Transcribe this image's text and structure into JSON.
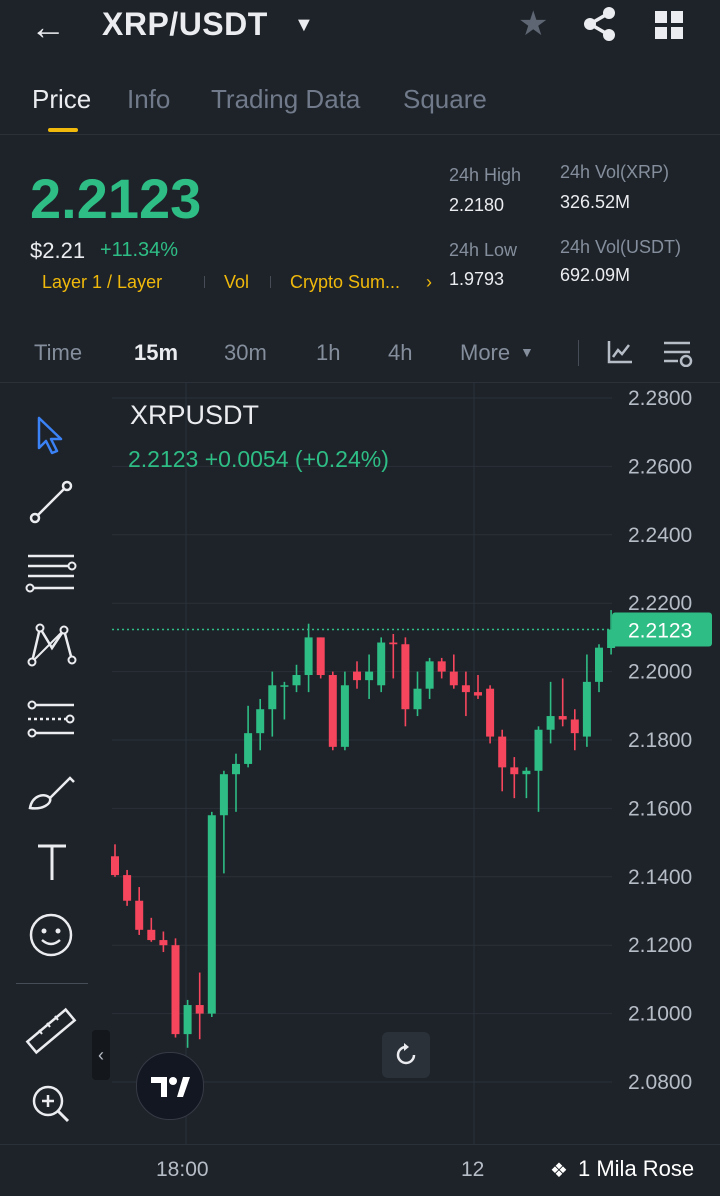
{
  "header": {
    "pair": "XRP/USDT",
    "icons": [
      "back-arrow-icon",
      "caret-down-icon",
      "star-icon",
      "share-icon",
      "grid-icon"
    ]
  },
  "tabs": [
    {
      "label": "Price",
      "active": true
    },
    {
      "label": "Info",
      "active": false
    },
    {
      "label": "Trading Data",
      "active": false
    },
    {
      "label": "Square",
      "active": false
    }
  ],
  "ticker": {
    "last_price": "2.2123",
    "usd_price": "$2.21",
    "change_pct": "+11.34%",
    "tags": [
      "Layer 1 / Layer",
      "Vol",
      "Crypto Sum..."
    ],
    "high_label": "24h High",
    "high_value": "2.2180",
    "low_label": "24h Low",
    "low_value": "1.9793",
    "vol_xrp_label": "24h Vol(XRP)",
    "vol_xrp_value": "326.52M",
    "vol_usdt_label": "24h Vol(USDT)",
    "vol_usdt_value": "692.09M"
  },
  "timeframes": [
    {
      "label": "Time",
      "active": false
    },
    {
      "label": "15m",
      "active": true
    },
    {
      "label": "30m",
      "active": false
    },
    {
      "label": "1h",
      "active": false
    },
    {
      "label": "4h",
      "active": false
    },
    {
      "label": "More",
      "active": false
    }
  ],
  "chart_header": {
    "symbol": "XRPUSDT",
    "ohlc_line": "2.2123  +0.0054 (+0.24%)"
  },
  "chart_data": {
    "type": "candlestick",
    "ylim": [
      2.07,
      2.288
    ],
    "y_ticks": [
      "2.2800",
      "2.2600",
      "2.2400",
      "2.2200",
      "2.2000",
      "2.1800",
      "2.1600",
      "2.1400",
      "2.1200",
      "2.1000",
      "2.0800"
    ],
    "x_ticks": [
      "18:00",
      "12"
    ],
    "current_price": "2.2123",
    "colors": {
      "up": "#2ebd85",
      "down": "#f6465d",
      "grid": "#2b3139",
      "axis_text": "#b7bdc6"
    },
    "candles": [
      {
        "o": 2.146,
        "h": 2.1495,
        "l": 2.14,
        "c": 2.1405
      },
      {
        "o": 2.1405,
        "h": 2.142,
        "l": 2.1315,
        "c": 2.133
      },
      {
        "o": 2.133,
        "h": 2.137,
        "l": 2.123,
        "c": 2.1245
      },
      {
        "o": 2.1245,
        "h": 2.128,
        "l": 2.121,
        "c": 2.1215
      },
      {
        "o": 2.1215,
        "h": 2.124,
        "l": 2.118,
        "c": 2.12
      },
      {
        "o": 2.12,
        "h": 2.122,
        "l": 2.093,
        "c": 2.094
      },
      {
        "o": 2.094,
        "h": 2.104,
        "l": 2.09,
        "c": 2.1025
      },
      {
        "o": 2.1025,
        "h": 2.112,
        "l": 2.0925,
        "c": 2.1
      },
      {
        "o": 2.1,
        "h": 2.159,
        "l": 2.099,
        "c": 2.158
      },
      {
        "o": 2.158,
        "h": 2.171,
        "l": 2.141,
        "c": 2.17
      },
      {
        "o": 2.17,
        "h": 2.176,
        "l": 2.159,
        "c": 2.173
      },
      {
        "o": 2.173,
        "h": 2.19,
        "l": 2.172,
        "c": 2.182
      },
      {
        "o": 2.182,
        "h": 2.192,
        "l": 2.177,
        "c": 2.189
      },
      {
        "o": 2.189,
        "h": 2.2,
        "l": 2.181,
        "c": 2.196
      },
      {
        "o": 2.196,
        "h": 2.197,
        "l": 2.186,
        "c": 2.196
      },
      {
        "o": 2.196,
        "h": 2.202,
        "l": 2.194,
        "c": 2.199
      },
      {
        "o": 2.199,
        "h": 2.214,
        "l": 2.194,
        "c": 2.21
      },
      {
        "o": 2.21,
        "h": 2.21,
        "l": 2.198,
        "c": 2.199
      },
      {
        "o": 2.199,
        "h": 2.2,
        "l": 2.177,
        "c": 2.178
      },
      {
        "o": 2.178,
        "h": 2.2,
        "l": 2.177,
        "c": 2.196
      },
      {
        "o": 2.2,
        "h": 2.203,
        "l": 2.195,
        "c": 2.1975
      },
      {
        "o": 2.1975,
        "h": 2.205,
        "l": 2.192,
        "c": 2.2
      },
      {
        "o": 2.196,
        "h": 2.21,
        "l": 2.194,
        "c": 2.2085
      },
      {
        "o": 2.2085,
        "h": 2.211,
        "l": 2.198,
        "c": 2.208
      },
      {
        "o": 2.208,
        "h": 2.21,
        "l": 2.184,
        "c": 2.189
      },
      {
        "o": 2.189,
        "h": 2.2,
        "l": 2.187,
        "c": 2.195
      },
      {
        "o": 2.195,
        "h": 2.204,
        "l": 2.192,
        "c": 2.203
      },
      {
        "o": 2.203,
        "h": 2.204,
        "l": 2.198,
        "c": 2.2
      },
      {
        "o": 2.2,
        "h": 2.205,
        "l": 2.195,
        "c": 2.196
      },
      {
        "o": 2.196,
        "h": 2.2,
        "l": 2.187,
        "c": 2.194
      },
      {
        "o": 2.194,
        "h": 2.199,
        "l": 2.192,
        "c": 2.193
      },
      {
        "o": 2.195,
        "h": 2.196,
        "l": 2.179,
        "c": 2.181
      },
      {
        "o": 2.181,
        "h": 2.183,
        "l": 2.165,
        "c": 2.172
      },
      {
        "o": 2.172,
        "h": 2.175,
        "l": 2.163,
        "c": 2.17
      },
      {
        "o": 2.17,
        "h": 2.172,
        "l": 2.163,
        "c": 2.171
      },
      {
        "o": 2.171,
        "h": 2.184,
        "l": 2.159,
        "c": 2.183
      },
      {
        "o": 2.183,
        "h": 2.197,
        "l": 2.179,
        "c": 2.187
      },
      {
        "o": 2.187,
        "h": 2.198,
        "l": 2.184,
        "c": 2.186
      },
      {
        "o": 2.186,
        "h": 2.189,
        "l": 2.177,
        "c": 2.182
      },
      {
        "o": 2.181,
        "h": 2.205,
        "l": 2.178,
        "c": 2.197
      },
      {
        "o": 2.197,
        "h": 2.208,
        "l": 2.194,
        "c": 2.207
      },
      {
        "o": 2.2069,
        "h": 2.218,
        "l": 2.205,
        "c": 2.2123
      }
    ]
  },
  "tools": [
    "cursor-icon",
    "trend-line-icon",
    "horizontal-lines-icon",
    "pattern-icon",
    "fib-icon",
    "brush-icon",
    "text-icon",
    "emoji-icon",
    "ruler-icon",
    "zoom-in-icon"
  ],
  "watermark": "1 Mila Rose"
}
